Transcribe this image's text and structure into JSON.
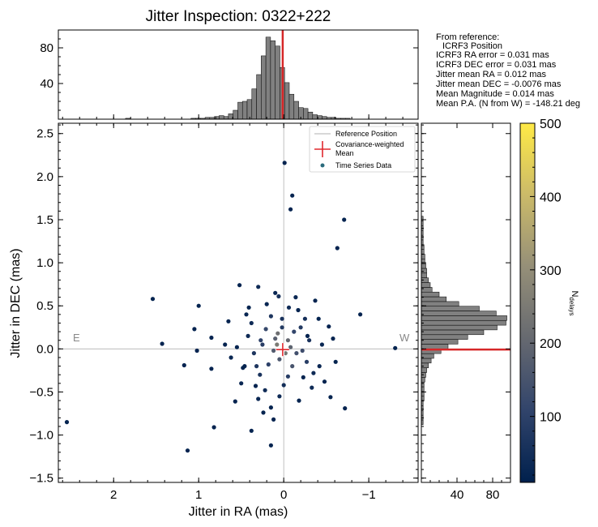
{
  "chart_data": {
    "type": "scatter",
    "title": "Jitter Inspection: 0322+222",
    "xlabel": "Jitter in RA (mas)",
    "ylabel": "Jitter in DEC (mas)",
    "xlim": [
      2.65,
      -1.58
    ],
    "ylim": [
      -1.55,
      2.62
    ],
    "x_ticks": [
      2,
      1,
      0,
      -1
    ],
    "x_tick_labels": [
      "2",
      "1",
      "0",
      "−1"
    ],
    "y_ticks": [
      2.5,
      2.0,
      1.5,
      1.0,
      0.5,
      0.0,
      -0.5,
      -1.0,
      -1.5
    ],
    "y_tick_labels": [
      "2.5",
      "2.0",
      "1.5",
      "1.0",
      "0.5",
      "0.0",
      "−0.5",
      "−1.0",
      "−1.5"
    ],
    "direction_labels": {
      "east": "E",
      "west": "W"
    },
    "reference_position": {
      "ra": 0.0,
      "dec": 0.0
    },
    "weighted_mean": {
      "ra": 0.012,
      "dec": -0.0076
    },
    "colors": {
      "mean_marker": "#e0282e",
      "reference_line": "#b0b0b0",
      "hist_fill": "#808080",
      "mean_line": "#d62728"
    },
    "legend": {
      "position": "upper-right",
      "entries": [
        "Reference Position",
        "Covariance-weighted Mean",
        "Time Series Data"
      ]
    },
    "legend_lines": {
      "reference": "Reference Position",
      "mean_line1": "Covariance-weighted",
      "mean_line2": "Mean",
      "data": "Time Series Data"
    },
    "points": [
      [
        -0.01,
        2.16,
        20
      ],
      [
        -0.08,
        1.62,
        20
      ],
      [
        -0.1,
        1.78,
        20
      ],
      [
        -0.71,
        1.5,
        20
      ],
      [
        -0.63,
        1.17,
        20
      ],
      [
        1.54,
        0.58,
        20
      ],
      [
        1.43,
        0.06,
        20
      ],
      [
        1.0,
        0.5,
        20
      ],
      [
        1.05,
        0.23,
        20
      ],
      [
        1.02,
        -0.02,
        20
      ],
      [
        1.17,
        -0.19,
        20
      ],
      [
        0.85,
        0.13,
        20
      ],
      [
        0.52,
        0.74,
        20
      ],
      [
        0.85,
        -0.23,
        20
      ],
      [
        -1.31,
        0.01,
        20
      ],
      [
        2.55,
        -0.85,
        20
      ],
      [
        1.13,
        -1.18,
        20
      ],
      [
        0.82,
        -0.91,
        20
      ],
      [
        0.38,
        -0.95,
        20
      ],
      [
        -0.72,
        -0.69,
        20
      ],
      [
        -0.9,
        0.4,
        20
      ],
      [
        0.57,
        -0.61,
        20
      ],
      [
        0.15,
        -1.12,
        20
      ],
      [
        -0.55,
        -0.56,
        20
      ],
      [
        -0.28,
        0.15,
        20
      ],
      [
        0.3,
        0.72,
        40
      ],
      [
        0.06,
        0.61,
        60
      ],
      [
        0.12,
        -0.82,
        20
      ],
      [
        0.24,
        -0.74,
        20
      ],
      [
        0.46,
        -0.2,
        20
      ],
      [
        -0.53,
        0.26,
        20
      ],
      [
        -0.41,
        0.35,
        20
      ],
      [
        -0.61,
        -0.15,
        20
      ],
      [
        0.65,
        0.32,
        20
      ],
      [
        0.41,
        0.48,
        20
      ],
      [
        -0.37,
        0.56,
        20
      ],
      [
        -0.17,
        0.45,
        20
      ],
      [
        0.69,
        0.05,
        20
      ],
      [
        0.33,
        -0.43,
        20
      ],
      [
        -0.23,
        -0.33,
        20
      ],
      [
        0.21,
        0.23,
        120
      ],
      [
        0.1,
        0.12,
        180
      ],
      [
        -0.05,
        0.1,
        200
      ],
      [
        -0.15,
        -0.05,
        140
      ],
      [
        0.05,
        -0.12,
        160
      ],
      [
        0.18,
        -0.18,
        100
      ],
      [
        -0.12,
        0.2,
        110
      ],
      [
        0.25,
        0.05,
        90
      ],
      [
        -0.22,
        -0.02,
        130
      ],
      [
        0.02,
        0.25,
        80
      ],
      [
        0.15,
        0.38,
        70
      ],
      [
        -0.3,
        0.1,
        60
      ],
      [
        0.35,
        -0.05,
        70
      ],
      [
        -0.05,
        -0.32,
        90
      ],
      [
        0.28,
        -0.3,
        60
      ],
      [
        -0.1,
        -0.2,
        150
      ],
      [
        0.08,
        0.05,
        250
      ],
      [
        -0.02,
        -0.05,
        240
      ],
      [
        0.12,
        -0.02,
        170
      ],
      [
        -0.08,
        0.02,
        190
      ],
      [
        0.42,
        0.15,
        40
      ],
      [
        -0.42,
        -0.2,
        30
      ],
      [
        0.5,
        -0.4,
        30
      ],
      [
        -0.33,
        -0.45,
        40
      ],
      [
        0.2,
        0.52,
        30
      ],
      [
        -0.25,
        0.35,
        50
      ],
      [
        0.38,
        0.3,
        40
      ],
      [
        -0.45,
        0.05,
        30
      ],
      [
        0.05,
        -0.55,
        40
      ],
      [
        0.3,
        -0.58,
        30
      ],
      [
        0.62,
        -0.1,
        30
      ],
      [
        -0.58,
        0.12,
        20
      ],
      [
        0.48,
        -0.22,
        20
      ],
      [
        0.55,
        0.02,
        20
      ],
      [
        -0.18,
        -0.6,
        20
      ],
      [
        0.15,
        -0.68,
        20
      ],
      [
        -0.48,
        -0.38,
        20
      ],
      [
        0.1,
        0.65,
        30
      ],
      [
        -0.06,
        0.48,
        40
      ],
      [
        0.27,
        0.1,
        100
      ],
      [
        -0.2,
        0.25,
        80
      ],
      [
        0.02,
        0.35,
        60
      ],
      [
        -0.35,
        -0.28,
        40
      ],
      [
        0.44,
        0.4,
        30
      ],
      [
        0.0,
        -0.42,
        50
      ],
      [
        0.22,
        -0.48,
        40
      ],
      [
        -0.14,
        0.6,
        30
      ],
      [
        0.32,
        -0.2,
        70
      ],
      [
        -0.27,
        -0.15,
        90
      ],
      [
        0.07,
        0.18,
        220
      ]
    ]
  },
  "histograms": {
    "ra": {
      "type": "bar",
      "orientation": "vertical",
      "bin_start": 1.86,
      "bin_width": 0.055,
      "counts": [
        1,
        0,
        0,
        0,
        0,
        0,
        0,
        0,
        0,
        0,
        0,
        0,
        0,
        0,
        1,
        1,
        1,
        2,
        2,
        3,
        4,
        3,
        6,
        10,
        19,
        20,
        22,
        34,
        50,
        71,
        92,
        88,
        82,
        58,
        41,
        28,
        20,
        13,
        12,
        8,
        5,
        4,
        3,
        2,
        2,
        1,
        1,
        1
      ],
      "ylim": [
        0,
        100
      ],
      "y_ticks": [
        40,
        80
      ],
      "y_tick_labels": [
        "40",
        "80"
      ],
      "mean_line": 0.012
    },
    "dec": {
      "type": "bar",
      "orientation": "horizontal",
      "bin_start": -0.88,
      "bin_width": 0.055,
      "counts": [
        2,
        2,
        2,
        2,
        2,
        3,
        3,
        3,
        3,
        4,
        5,
        6,
        8,
        11,
        14,
        22,
        30,
        41,
        52,
        70,
        85,
        95,
        96,
        84,
        65,
        42,
        28,
        20,
        12,
        10,
        8,
        6,
        6,
        5,
        4,
        4,
        3,
        3,
        2,
        2,
        2,
        2,
        2,
        2
      ],
      "xlim": [
        0,
        100
      ],
      "x_ticks": [
        40,
        80
      ],
      "x_tick_labels": [
        "40",
        "80"
      ],
      "mean_line": -0.0076
    }
  },
  "stats": {
    "header": "From reference:",
    "subheader": "ICRF3 Position",
    "lines": [
      "ICRF3 RA error = 0.031 mas",
      "ICRF3 DEC error = 0.031 mas",
      "Jitter mean RA = 0.012 mas",
      "Jitter mean DEC = -0.0076 mas",
      "Mean Magnitude = 0.014 mas",
      "Mean P.A. (N from W) = -148.21 deg"
    ]
  },
  "colorbar": {
    "label": "N",
    "label_subscript": "delays",
    "min": 10,
    "max": 500,
    "ticks": [
      100,
      200,
      300,
      400,
      500
    ],
    "tick_labels": [
      "100",
      "200",
      "300",
      "400",
      "500"
    ],
    "colors": [
      "#00204d",
      "#31446b",
      "#666970",
      "#958f78",
      "#cbba69",
      "#ffea46"
    ]
  }
}
